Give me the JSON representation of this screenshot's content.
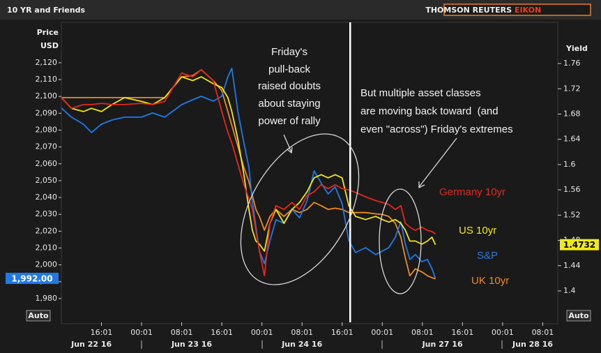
{
  "header": {
    "brand": "THOMSON REUTERS",
    "product": "EIKON"
  },
  "controls": [
    "Auto",
    "Auto"
  ],
  "chart_data": {
    "type": "line",
    "title": "10 YR and Friends",
    "ylabel": [
      "Price",
      "USD"
    ],
    "y2label": "Yield",
    "annotations": [
      [
        "Friday's",
        "pull-back",
        "raised doubts",
        "about staying",
        "power of rally"
      ],
      [
        "But multiple asset classes",
        "are moving back toward  (and",
        "even \"across\") Friday's extremes"
      ]
    ],
    "x": [
      8.0,
      10.0,
      12.4,
      14.0,
      16.0,
      18.1,
      20.6,
      24.0,
      26.2,
      28.6,
      32.0,
      34.2,
      35.9,
      38.3,
      40.0,
      41.2,
      42.0,
      43.2,
      44.4,
      45.4,
      46.1,
      46.8,
      47.5,
      48.5,
      49.6,
      50.8,
      52.4,
      54.0,
      55.5,
      57.0,
      58.4,
      59.8,
      61.2,
      62.6,
      64.0,
      73.3,
      82.7,
      96.7,
      110.7,
      120.0,
      121.3,
      122.6,
      123.7,
      124.6,
      125.5,
      126.6,
      127.9,
      129.0,
      129.9,
      130.6
    ],
    "xlim": [
      8,
      155
    ],
    "xticks": [
      {
        "value": 16,
        "label": "16:01"
      },
      {
        "value": 24,
        "label": "00:01"
      },
      {
        "value": 32,
        "label": "08:01"
      },
      {
        "value": 40,
        "label": "16:01"
      },
      {
        "value": 48,
        "label": "00:01"
      },
      {
        "value": 56,
        "label": "08:01"
      },
      {
        "value": 64,
        "label": "16:01"
      },
      {
        "value": 120,
        "label": "00:01"
      },
      {
        "value": 128,
        "label": "08:01"
      },
      {
        "value": 136,
        "label": "16:01"
      },
      {
        "value": 144,
        "label": "00:01"
      },
      {
        "value": 152,
        "label": "08:01"
      }
    ],
    "xdates": [
      {
        "value": 14,
        "label": "Jun 22 16"
      },
      {
        "value": 34,
        "label": "Jun 23 16"
      },
      {
        "value": 56,
        "label": "Jun 24 16"
      },
      {
        "value": 132,
        "label": "Jun 27 16"
      },
      {
        "value": 150,
        "label": "Jun 28 16"
      }
    ],
    "cursor_x": 75.2,
    "ylim": [
      1965.9,
      2141.5
    ],
    "yticks": [
      {
        "value": 2120,
        "label": "2,120"
      },
      {
        "value": 2110,
        "label": "2,110"
      },
      {
        "value": 2100,
        "label": "2,100"
      },
      {
        "value": 2090,
        "label": "2,090"
      },
      {
        "value": 2080,
        "label": "2,080"
      },
      {
        "value": 2070,
        "label": "2,070"
      },
      {
        "value": 2060,
        "label": "2,060"
      },
      {
        "value": 2050,
        "label": "2,050"
      },
      {
        "value": 2040,
        "label": "2,040"
      },
      {
        "value": 2030,
        "label": "2,030"
      },
      {
        "value": 2020,
        "label": "2,020"
      },
      {
        "value": 2010,
        "label": "2,010"
      },
      {
        "value": 2000,
        "label": "2,000"
      },
      {
        "value": 1990,
        "label": "1,990"
      },
      {
        "value": 1980,
        "label": "1,980"
      }
    ],
    "y2lim": [
      1.3503,
      1.8186
    ],
    "y2ticks": [
      1.76,
      1.72,
      1.68,
      1.64,
      1.6,
      1.56,
      1.52,
      1.48,
      1.44,
      1.4
    ],
    "grid": false,
    "series": [
      {
        "name": "Germany 10yr",
        "color": "#e8261a",
        "axis": "y2",
        "values": [
          1.706,
          1.689,
          1.695,
          1.695,
          1.697,
          1.695,
          1.695,
          1.697,
          1.695,
          1.7,
          1.745,
          1.739,
          1.75,
          1.733,
          1.684,
          1.651,
          1.634,
          1.601,
          1.568,
          1.546,
          1.529,
          1.496,
          1.463,
          1.424,
          1.507,
          1.535,
          1.529,
          1.54,
          1.529,
          1.551,
          1.557,
          1.568,
          1.562,
          1.568,
          1.562,
          1.56,
          1.556,
          1.549,
          1.543,
          1.54,
          1.537,
          1.529,
          1.535,
          1.507,
          1.501,
          1.496,
          1.501,
          1.496,
          1.494,
          1.49
        ]
      },
      {
        "name": "US 10yr",
        "color": "#f2e812",
        "axis": "y2",
        "values": [
          1.706,
          1.689,
          1.684,
          1.689,
          1.684,
          1.695,
          1.706,
          1.7,
          1.695,
          1.706,
          1.739,
          1.733,
          1.739,
          1.728,
          1.722,
          1.706,
          1.684,
          1.64,
          1.584,
          1.529,
          1.496,
          1.479,
          1.474,
          1.463,
          1.507,
          1.529,
          1.507,
          1.529,
          1.54,
          1.557,
          1.579,
          1.584,
          1.579,
          1.584,
          1.579,
          1.535,
          1.518,
          1.513,
          1.518,
          1.513,
          1.509,
          1.513,
          1.507,
          1.496,
          1.479,
          1.479,
          1.474,
          1.479,
          1.485,
          1.4732
        ]
      },
      {
        "name": "S&P",
        "color": "#1e7ae8",
        "axis": "y",
        "values": [
          2093.1,
          2087.7,
          2083.5,
          2078.6,
          2083.5,
          2086.0,
          2087.7,
          2087.7,
          2090.2,
          2087.7,
          2095.1,
          2098.0,
          2100.1,
          2097.2,
          2100.1,
          2111.7,
          2116.7,
          2091.0,
          2072.4,
          2057.9,
          2037.2,
          2022.7,
          2008.2,
          2000.7,
          2014.4,
          2026.8,
          2024.7,
          2033.0,
          2028.0,
          2038.0,
          2055.8,
          2048.7,
          2042.1,
          2046.3,
          2036.3,
          2014.4,
          2007.3,
          2010.2,
          2006.1,
          2008.2,
          2010.2,
          2016.4,
          2025.6,
          2012.3,
          2003.2,
          2006.1,
          2001.9,
          2003.2,
          1997.8,
          1992
        ],
        "value_labels": [
          null,
          null,
          null,
          null,
          null,
          null,
          null,
          null,
          null,
          null,
          null,
          null,
          null,
          null,
          null,
          null,
          null,
          null,
          null,
          null,
          null,
          null,
          null,
          null,
          null,
          null,
          null,
          null,
          null,
          null,
          null,
          null,
          null,
          null,
          null,
          null,
          null,
          null,
          null,
          null,
          null,
          null,
          null,
          null,
          null,
          null,
          null,
          null,
          null,
          "1,992.00"
        ]
      },
      {
        "name": "UK 10yr",
        "color": "#f08a1e",
        "axis": "y2",
        "values": [
          1.706,
          1.706,
          1.706,
          1.706,
          1.706,
          1.706,
          1.706,
          1.706,
          1.706,
          1.706,
          1.739,
          1.741,
          1.75,
          1.733,
          1.717,
          1.684,
          1.662,
          1.629,
          1.595,
          1.573,
          1.551,
          1.529,
          1.518,
          1.496,
          1.518,
          1.529,
          1.518,
          1.529,
          1.524,
          1.529,
          1.54,
          1.535,
          1.529,
          1.531,
          1.529,
          1.524,
          1.524,
          1.524,
          1.522,
          1.521,
          1.518,
          1.507,
          1.485,
          1.452,
          1.424,
          1.435,
          1.43,
          1.424,
          1.421,
          1.419
        ]
      }
    ]
  }
}
